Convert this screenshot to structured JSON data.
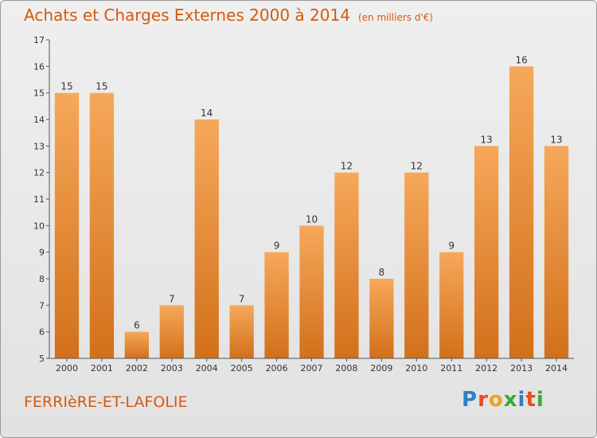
{
  "header": {
    "title": "Achats et Charges Externes 2000 à 2014",
    "unit": "(en milliers d'€)"
  },
  "footer": {
    "city": "FERRIèRE-ET-LAFOLIE",
    "logo": [
      "P",
      "r",
      "o",
      "x",
      "i",
      "t",
      "i"
    ],
    "logo_colors": [
      "#2f7fc8",
      "#e84c1f",
      "#f0a11c",
      "#3aa935",
      "#2f7fc8",
      "#e84c1f",
      "#3aa935"
    ]
  },
  "chart_data": {
    "type": "bar",
    "categories": [
      "2000",
      "2001",
      "2002",
      "2003",
      "2004",
      "2005",
      "2006",
      "2007",
      "2008",
      "2009",
      "2010",
      "2011",
      "2012",
      "2013",
      "2014"
    ],
    "values": [
      15,
      15,
      6,
      7,
      14,
      7,
      9,
      10,
      12,
      8,
      12,
      9,
      13,
      16,
      13
    ],
    "ylim": [
      5,
      17
    ],
    "yticks": [
      5,
      6,
      7,
      8,
      9,
      10,
      11,
      12,
      13,
      14,
      15,
      16,
      17
    ],
    "grid": false,
    "bar_color": "#f0922e"
  }
}
